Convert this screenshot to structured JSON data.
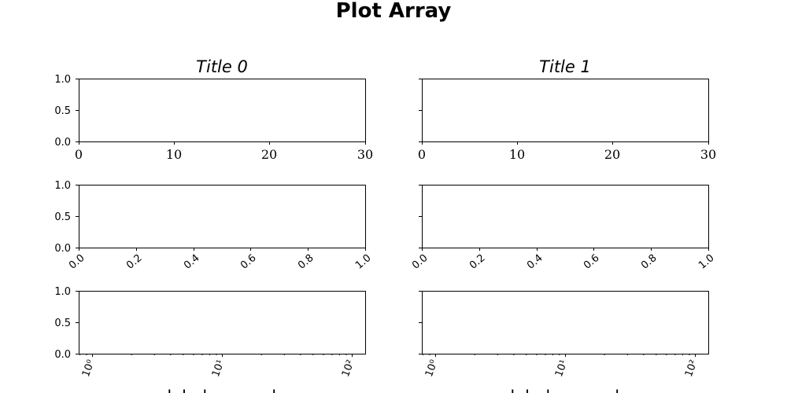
{
  "figure": {
    "suptitle": "Plot Array"
  },
  "chart_data": [
    {
      "type": "line",
      "title": "Title 0",
      "xlabel": "",
      "ylabel": "",
      "xlim": [
        0,
        30
      ],
      "ylim": [
        0,
        1
      ],
      "xticks": [
        "0",
        "10",
        "20",
        "30"
      ],
      "yticks": [
        "0.0",
        "0.5",
        "1.0"
      ],
      "series": []
    },
    {
      "type": "line",
      "title": "Title 1",
      "xlabel": "",
      "ylabel": "",
      "xlim": [
        0,
        30
      ],
      "ylim": [
        0,
        1
      ],
      "xticks": [
        "0",
        "10",
        "20",
        "30"
      ],
      "yticks": [],
      "series": []
    },
    {
      "type": "line",
      "title": "",
      "xlabel": "",
      "ylabel": "",
      "xlim": [
        0,
        1
      ],
      "ylim": [
        0,
        1
      ],
      "xticks": [
        "0.0",
        "0.2",
        "0.4",
        "0.6",
        "0.8",
        "1.0"
      ],
      "yticks": [
        "0.0",
        "0.5",
        "1.0"
      ],
      "series": []
    },
    {
      "type": "line",
      "title": "",
      "xlabel": "",
      "ylabel": "",
      "xlim": [
        0,
        1
      ],
      "ylim": [
        0,
        1
      ],
      "xticks": [
        "0.0",
        "0.2",
        "0.4",
        "0.6",
        "0.8",
        "1.0"
      ],
      "yticks": [],
      "series": []
    },
    {
      "type": "line",
      "title": "",
      "xlabel": "xlabel_example",
      "ylabel": "",
      "xscale": "log",
      "ylim": [
        0,
        1
      ],
      "xticks": [
        "10⁰",
        "10¹",
        "10²"
      ],
      "yticks": [
        "0.0",
        "0.5",
        "1.0"
      ],
      "series": []
    },
    {
      "type": "line",
      "title": "",
      "xlabel": "xlabel_example",
      "ylabel": "",
      "xscale": "log",
      "ylim": [
        0,
        1
      ],
      "xticks": [
        "10⁰",
        "10¹",
        "10²"
      ],
      "yticks": [],
      "series": []
    }
  ]
}
